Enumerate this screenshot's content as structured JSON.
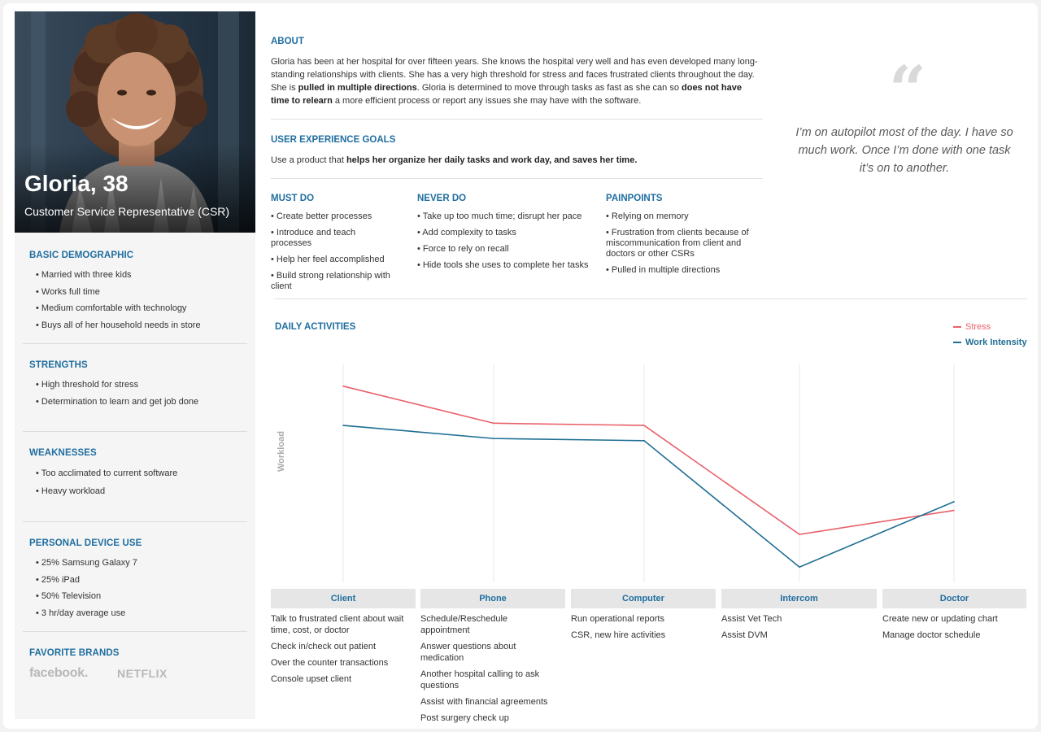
{
  "persona": {
    "name": "Gloria, 38",
    "role": "Customer Service Representative (CSR)"
  },
  "sidebar": {
    "basic_demographic": {
      "heading": "BASIC DEMOGRAPHIC",
      "items": [
        "• Married with three kids",
        "• Works full time",
        "• Medium comfortable with technology",
        "• Buys all of her household needs in store"
      ]
    },
    "strengths": {
      "heading": "STRENGTHS",
      "items": [
        "• High threshold for stress",
        "• Determination to learn and get job done"
      ]
    },
    "weaknesses": {
      "heading": "WEAKNESSES",
      "items": [
        "• Too acclimated to current software",
        "• Heavy workload"
      ]
    },
    "device_use": {
      "heading": "PERSONAL DEVICE USE",
      "items": [
        "• 25% Samsung Galaxy 7",
        "• 25% iPad",
        "• 50% Television",
        "• 3 hr/day average use"
      ]
    },
    "brands": {
      "heading": "FAVORITE BRANDS",
      "items": [
        "facebook.",
        "NETFLIX"
      ]
    }
  },
  "about": {
    "heading": "ABOUT",
    "text_1": "Gloria has been at her hospital for over fifteen years. She knows the hospital very well and has even developed many long-standing relationships with clients. She has a very high threshold for stress and faces frustrated clients throughout the day. She is ",
    "bold_1": "pulled in multiple directions",
    "text_2": ". Gloria is determined to move through tasks as fast as she can so ",
    "bold_2": "does not have time to relearn",
    "text_3": " a more efficient process or report any issues she may have with the software."
  },
  "ux_goals": {
    "heading": "USER EXPERIENCE GOALS",
    "text_1": "Use a product that ",
    "bold_1": "helps her organize her daily tasks and work day, and saves her time."
  },
  "quote": "I’m on autopilot most of the day. I have so much work. Once I’m done with one task it’s on to another.",
  "must_do": {
    "heading": "MUST DO",
    "items": [
      "• Create better processes",
      "• Introduce and teach processes",
      "• Help her feel accomplished",
      "• Build strong relationship with client"
    ]
  },
  "never_do": {
    "heading": "NEVER DO",
    "items": [
      "• Take up too much time; disrupt her pace",
      "• Add complexity to tasks",
      "• Force to rely on recall",
      "• Hide tools she uses to complete her tasks"
    ]
  },
  "painpoints": {
    "heading": "PAINPOINTS",
    "items": [
      "• Relying on memory",
      "• Frustration from clients because of miscommunication from client and doctors or other CSRs",
      "• Pulled in multiple directions"
    ]
  },
  "activities": {
    "heading": "DAILY ACTIVITIES",
    "stages": [
      {
        "label": "Client",
        "items": [
          "Talk to frustrated client about wait time, cost, or doctor",
          "Check in/check out patient",
          "Over the counter transactions",
          "Console upset client"
        ]
      },
      {
        "label": "Phone",
        "items": [
          "Schedule/Reschedule appointment",
          "Answer questions about medication",
          "Another hospital calling to ask questions",
          "Assist with financial agreements",
          "Post surgery check up"
        ]
      },
      {
        "label": "Computer",
        "items": [
          "Run operational reports",
          "CSR, new hire activities"
        ]
      },
      {
        "label": "Intercom",
        "items": [
          "Assist Vet Tech",
          "Assist DVM"
        ]
      },
      {
        "label": "Doctor",
        "items": [
          "Create new or updating chart",
          "Manage doctor schedule"
        ]
      }
    ]
  },
  "chart_data": {
    "type": "line",
    "categories": [
      "Client",
      "Phone",
      "Computer",
      "Intercom",
      "Doctor"
    ],
    "ylabel": "Workload",
    "ylim": [
      0,
      100
    ],
    "grid": "vertical",
    "legend": "top-right",
    "series": [
      {
        "name": "Stress",
        "color": "#e8606a",
        "values": [
          90,
          73,
          72,
          22,
          33
        ]
      },
      {
        "name": "Work Intensity",
        "color": "#1f6e93",
        "values": [
          72,
          66,
          65,
          7,
          37
        ]
      }
    ]
  },
  "colors": {
    "accent": "#1f6ea0",
    "stress": "#e8606a",
    "work": "#1f6e93"
  }
}
